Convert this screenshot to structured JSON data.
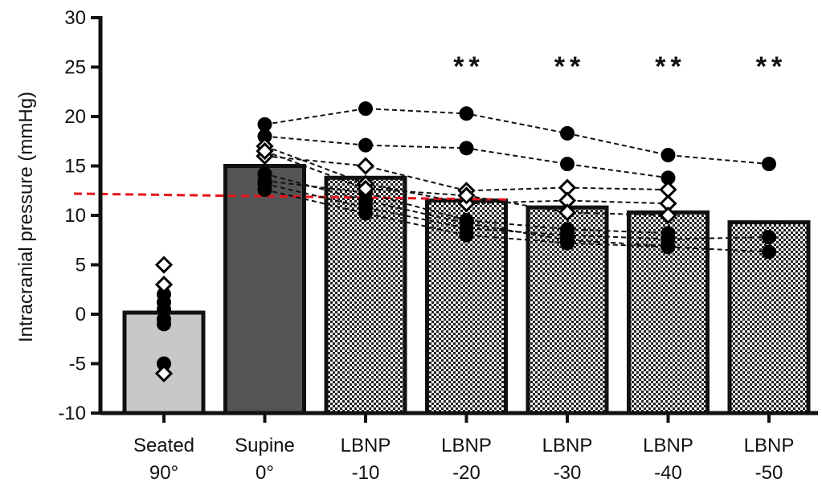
{
  "chart_data": {
    "type": "bar",
    "ylabel": "Intracranial pressure (mmHg)",
    "ylim": [
      -10,
      30
    ],
    "yticks": [
      -10,
      -5,
      0,
      5,
      10,
      15,
      20,
      25,
      30
    ],
    "categories": [
      {
        "line1": "Seated",
        "line2": "90°"
      },
      {
        "line1": "Supine",
        "line2": "0°"
      },
      {
        "line1": "LBNP",
        "line2": "-10"
      },
      {
        "line1": "LBNP",
        "line2": "-20"
      },
      {
        "line1": "LBNP",
        "line2": "-30"
      },
      {
        "line1": "LBNP",
        "line2": "-40"
      },
      {
        "line1": "LBNP",
        "line2": "-50"
      }
    ],
    "values": [
      0.0,
      15.0,
      13.8,
      11.5,
      10.8,
      10.3,
      9.3
    ],
    "bar_fills": [
      "light-gray",
      "dark-gray",
      "checker",
      "checker",
      "checker",
      "checker",
      "checker"
    ],
    "significance": [
      "",
      "",
      "",
      "**",
      "**",
      "**",
      "**"
    ],
    "reference_line": {
      "y": 12.2,
      "color": "#e8141c",
      "style": "dashed"
    },
    "subjects": [
      {
        "marker": "circle",
        "values": [
          -0.5,
          19.2,
          20.8,
          20.3,
          18.3,
          16.1,
          15.2
        ]
      },
      {
        "marker": "circle",
        "values": [
          -1.0,
          18.0,
          17.1,
          16.8,
          15.2,
          13.8,
          null
        ]
      },
      {
        "marker": "circle",
        "values": [
          -5.0,
          13.2,
          10.8,
          8.7,
          8.0,
          7.6,
          7.8
        ]
      },
      {
        "marker": "circle",
        "values": [
          1.2,
          12.6,
          10.2,
          8.0,
          7.2,
          6.8,
          6.3
        ]
      },
      {
        "marker": "circle",
        "values": [
          0.5,
          13.5,
          12.3,
          9.5,
          8.6,
          8.2,
          null
        ]
      },
      {
        "marker": "circle",
        "values": [
          2.0,
          14.2,
          11.5,
          9.2,
          7.5,
          6.9,
          null
        ]
      },
      {
        "marker": "diamond",
        "values": [
          5.0,
          16.0,
          15.0,
          12.5,
          12.8,
          12.6,
          null
        ]
      },
      {
        "marker": "diamond",
        "values": [
          3.0,
          17.0,
          13.2,
          11.2,
          11.5,
          11.2,
          null
        ]
      },
      {
        "marker": "diamond",
        "values": [
          -6.0,
          16.5,
          12.7,
          12.0,
          10.3,
          10.0,
          null
        ]
      }
    ],
    "colors": {
      "bar_stroke": "#111111",
      "light_bar": "#c8c8c8",
      "dark_bar": "#555555",
      "marker": "#000000"
    }
  }
}
